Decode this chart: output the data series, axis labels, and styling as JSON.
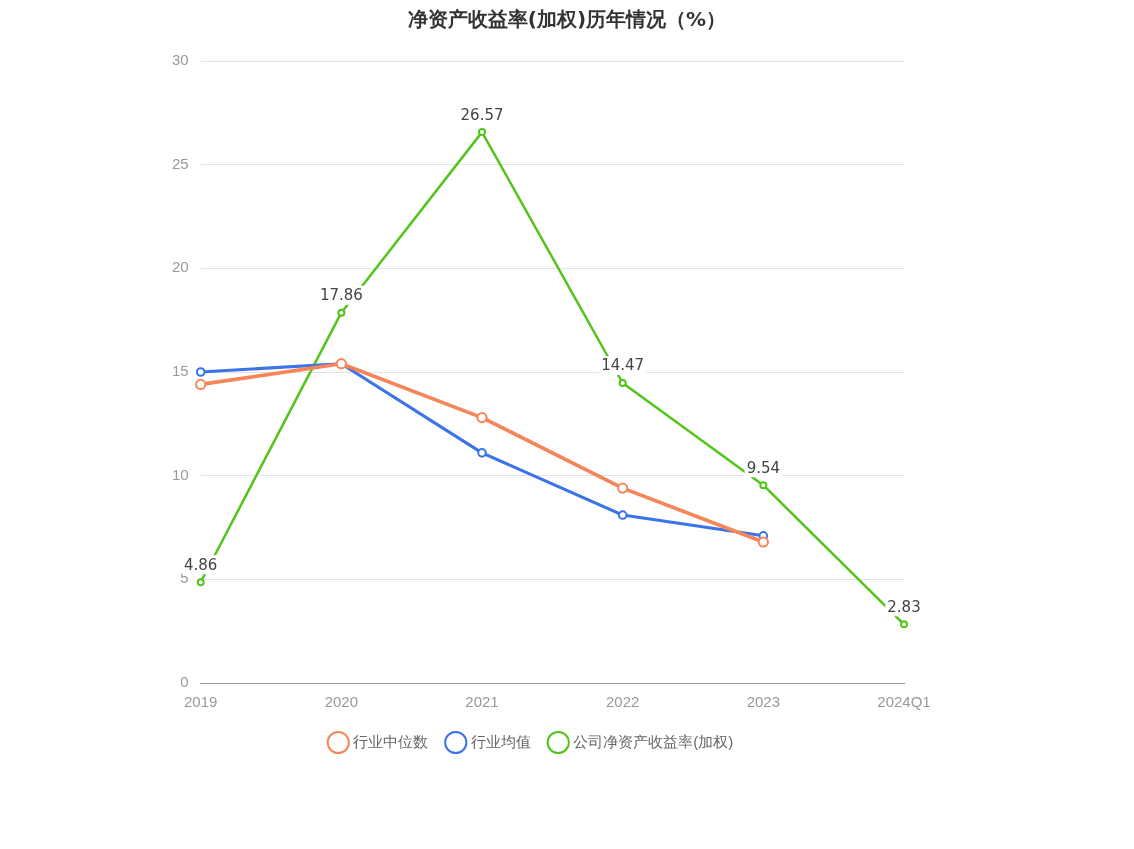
{
  "chart_data": {
    "type": "line",
    "title": "净资产收益率(加权)历年情况（%）",
    "categories": [
      "2019",
      "2020",
      "2021",
      "2022",
      "2023",
      "2024Q1"
    ],
    "series": [
      {
        "name": "公司净资产收益率(加权)",
        "color": "#52c41a",
        "values": [
          4.86,
          17.86,
          26.57,
          14.47,
          9.54,
          2.83
        ],
        "value_labels": [
          "4.86",
          "17.86",
          "26.57",
          "14.47",
          "9.54",
          "2.83"
        ]
      },
      {
        "name": "行业均值",
        "color": "#3b73e8",
        "values": [
          15.0,
          15.4,
          11.1,
          8.1,
          7.1,
          null
        ]
      },
      {
        "name": "行业中位数",
        "color": "#f5865a",
        "values": [
          14.4,
          15.4,
          12.8,
          9.4,
          6.8,
          null
        ]
      }
    ],
    "ylim": [
      0,
      30
    ],
    "yticks": [
      0,
      5,
      10,
      15,
      20,
      25,
      30
    ],
    "grid": "y",
    "legend": "bottom",
    "marker": "circle",
    "line_style": "solid"
  }
}
